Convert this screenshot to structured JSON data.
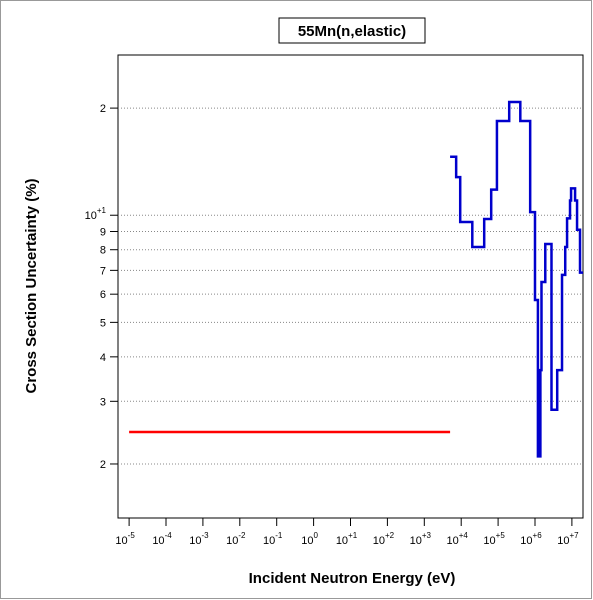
{
  "chart_data": {
    "type": "line",
    "title": "55Mn(n,elastic)",
    "x_label": "Incident Neutron Energy (eV)",
    "y_label": "Cross Section Uncertainty (%)",
    "xscale": "log",
    "yscale": "log",
    "step": "post",
    "grid": "y",
    "xlim": [
      5e-06,
      20000000.0
    ],
    "ylim": [
      1.41,
      28.2
    ],
    "xticks": [
      {
        "value": 1e-05,
        "label": "10",
        "exponent": "-5"
      },
      {
        "value": 0.0001,
        "label": "10",
        "exponent": "-4"
      },
      {
        "value": 0.001,
        "label": "10",
        "exponent": "-3"
      },
      {
        "value": 0.01,
        "label": "10",
        "exponent": "-2"
      },
      {
        "value": 0.1,
        "label": "10",
        "exponent": "-1"
      },
      {
        "value": 1,
        "label": "10",
        "exponent": "0"
      },
      {
        "value": 10,
        "label": "10",
        "exponent": "+1"
      },
      {
        "value": 100,
        "label": "10",
        "exponent": "+2"
      },
      {
        "value": 1000,
        "label": "10",
        "exponent": "+3"
      },
      {
        "value": 10000,
        "label": "10",
        "exponent": "+4"
      },
      {
        "value": 100000,
        "label": "10",
        "exponent": "+5"
      },
      {
        "value": 1000000,
        "label": "10",
        "exponent": "+6"
      },
      {
        "value": 10000000,
        "label": "10",
        "exponent": "+7"
      }
    ],
    "yticks": [
      2,
      3,
      4,
      5,
      6,
      7,
      8,
      9,
      {
        "value": 10,
        "label": "10",
        "exponent": "+1"
      },
      {
        "value": 20,
        "label": "2"
      }
    ],
    "series": [
      {
        "color": "#ff0000",
        "x": [
          1e-05,
          5000
        ],
        "values": [
          2.46,
          2.46
        ]
      },
      {
        "color": "#0000cc",
        "x": [
          5000,
          7300,
          9400,
          20000,
          42000,
          65000,
          93000,
          200000,
          400000,
          740000,
          1000000,
          1200000,
          1400000,
          1500000,
          1900000,
          2800000,
          4000000,
          5400000,
          6600000,
          7400000,
          8900000,
          9500000,
          12200000,
          13800000,
          16600000,
          20000000
        ],
        "values": [
          14.6,
          12.8,
          9.57,
          8.14,
          9.76,
          11.8,
          18.4,
          20.8,
          18.4,
          10.2,
          5.78,
          2.1,
          3.67,
          6.49,
          8.3,
          2.84,
          3.67,
          6.8,
          8.14,
          9.8,
          11.0,
          11.9,
          11.0,
          9.1,
          6.9,
          6.9
        ]
      }
    ]
  }
}
